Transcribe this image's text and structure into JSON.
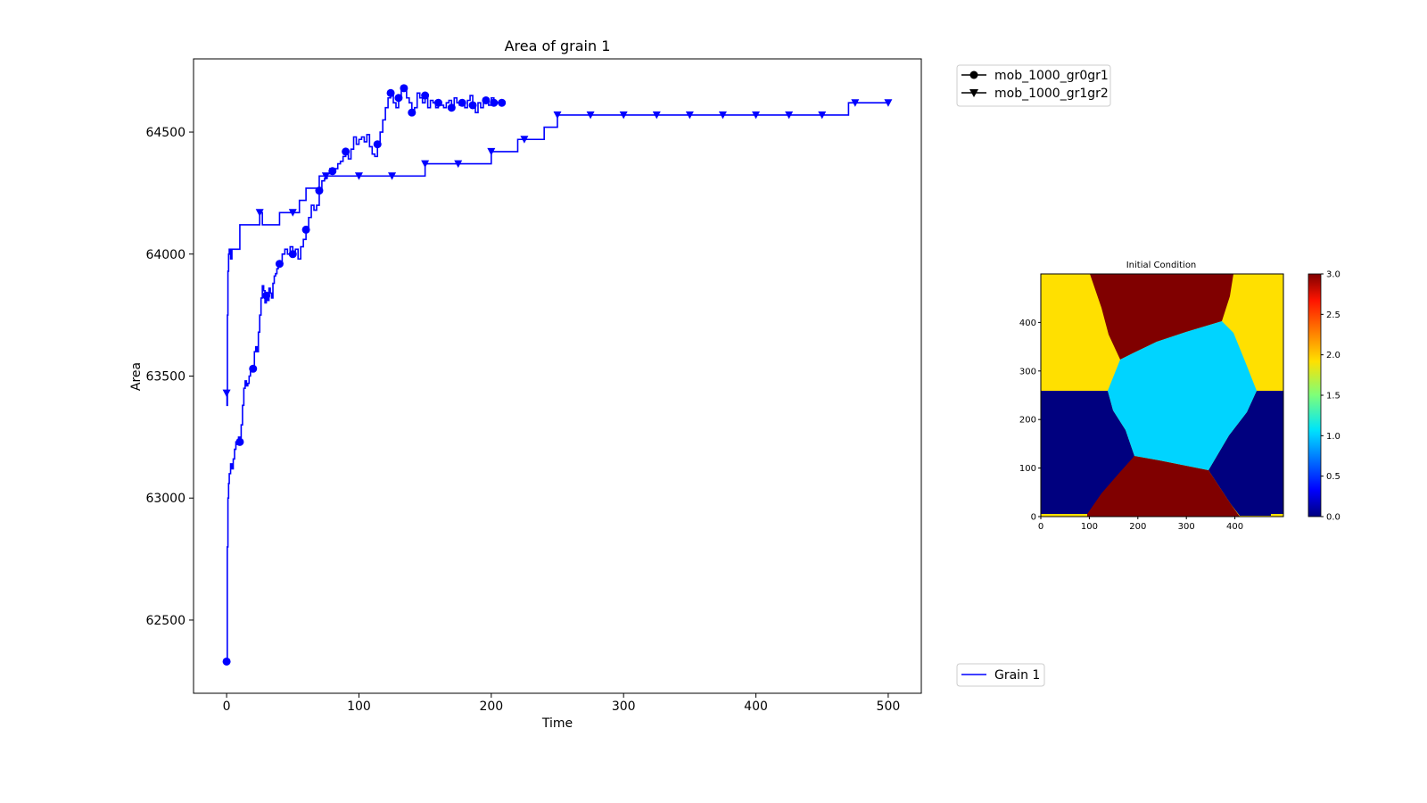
{
  "colors": {
    "series": "#0000ff",
    "legend_marker": "#000000",
    "map_yellow": "#ffe000",
    "map_darkred": "#800000",
    "map_cyan": "#00d4ff",
    "map_navy": "#00007f"
  },
  "chart_data": [
    {
      "type": "line",
      "title": "Area of grain 1",
      "xlabel": "Time",
      "ylabel": "Area",
      "xlim": [
        -25,
        525
      ],
      "ylim": [
        62200,
        64800
      ],
      "xticks": [
        "0",
        "100",
        "200",
        "300",
        "400",
        "500"
      ],
      "yticks": [
        "62500",
        "63000",
        "63500",
        "64000",
        "64500"
      ],
      "grid": false,
      "legend_top": {
        "placement": "outside-top-right",
        "entries": [
          "mob_1000_gr0gr1",
          "mob_1000_gr1gr2"
        ]
      },
      "legend_bottom": {
        "placement": "outside-bottom-right",
        "entries": [
          "Grain 1"
        ]
      },
      "series": [
        {
          "name": "mob_1000_gr0gr1",
          "marker": "circle",
          "x": [
            0,
            0.5,
            1,
            1.5,
            2,
            3,
            4,
            5,
            6,
            7,
            8,
            9,
            10,
            11,
            12,
            13,
            14,
            15,
            16,
            17,
            18,
            19,
            20,
            21,
            22,
            23,
            24,
            25,
            26,
            27,
            28,
            29,
            30,
            31,
            32,
            33,
            34,
            35,
            36,
            37,
            38,
            39,
            40,
            42,
            44,
            46,
            48,
            50,
            52,
            54,
            56,
            58,
            60,
            62,
            64,
            66,
            68,
            70,
            72,
            74,
            76,
            78,
            80,
            82,
            84,
            86,
            88,
            90,
            92,
            94,
            96,
            98,
            100,
            102,
            104,
            106,
            108,
            110,
            112,
            114,
            116,
            118,
            120,
            122,
            124,
            126,
            128,
            130,
            132,
            134,
            136,
            138,
            140,
            142,
            144,
            146,
            148,
            150,
            152,
            154,
            156,
            158,
            160,
            162,
            164,
            166,
            168,
            170,
            172,
            174,
            176,
            178,
            180,
            182,
            184,
            186,
            188,
            190,
            192,
            194,
            196,
            198,
            200,
            202,
            204,
            206,
            208
          ],
          "y": [
            62330,
            62800,
            63000,
            63060,
            63100,
            63140,
            63120,
            63160,
            63200,
            63230,
            63220,
            63250,
            63230,
            63300,
            63380,
            63450,
            63480,
            63460,
            63470,
            63500,
            63520,
            63530,
            63530,
            63600,
            63620,
            63600,
            63680,
            63750,
            63820,
            63870,
            63850,
            63800,
            63830,
            63810,
            63860,
            63840,
            63820,
            63880,
            63910,
            63920,
            63940,
            63960,
            63960,
            64000,
            64020,
            64000,
            64030,
            64000,
            64020,
            63980,
            64030,
            64060,
            64100,
            64150,
            64200,
            64180,
            64200,
            64260,
            64300,
            64310,
            64330,
            64350,
            64340,
            64350,
            64370,
            64380,
            64400,
            64420,
            64390,
            64430,
            64480,
            64450,
            64470,
            64480,
            64460,
            64490,
            64440,
            64410,
            64400,
            64450,
            64500,
            64550,
            64600,
            64640,
            64660,
            64620,
            64600,
            64640,
            64670,
            64680,
            64640,
            64620,
            64580,
            64600,
            64660,
            64640,
            64620,
            64650,
            64600,
            64630,
            64620,
            64600,
            64620,
            64610,
            64600,
            64620,
            64630,
            64600,
            64640,
            64620,
            64610,
            64620,
            64600,
            64630,
            64650,
            64610,
            64580,
            64620,
            64600,
            64620,
            64630,
            64610,
            64640,
            64620,
            64620,
            64620,
            64620
          ],
          "markers_at": [
            0,
            10,
            20,
            30,
            40,
            50,
            60,
            70,
            80,
            90,
            114,
            124,
            130,
            134,
            140,
            150,
            160,
            170,
            178,
            186,
            196,
            202,
            208
          ]
        },
        {
          "name": "mob_1000_gr1gr2",
          "marker": "triangle_down",
          "x": [
            0,
            0.3,
            0.6,
            1,
            1.5,
            2,
            3,
            4,
            5,
            6,
            8,
            10,
            12,
            15,
            18,
            22,
            25,
            27,
            30,
            35,
            40,
            45,
            50,
            55,
            60,
            70,
            80,
            95,
            110,
            125,
            140,
            150,
            165,
            175,
            190,
            200,
            210,
            220,
            230,
            240,
            250,
            260,
            275,
            300,
            350,
            400,
            450,
            470,
            475,
            490,
            500
          ],
          "y": [
            63430,
            63380,
            63750,
            63930,
            64000,
            64020,
            63980,
            64020,
            64020,
            64020,
            64020,
            64120,
            64120,
            64120,
            64120,
            64120,
            64170,
            64120,
            64120,
            64120,
            64170,
            64170,
            64170,
            64220,
            64270,
            64320,
            64320,
            64320,
            64320,
            64320,
            64320,
            64370,
            64370,
            64370,
            64370,
            64420,
            64420,
            64470,
            64470,
            64520,
            64570,
            64570,
            64570,
            64570,
            64570,
            64570,
            64570,
            64620,
            64620,
            64620,
            64620
          ],
          "markers_at": [
            0,
            25,
            50,
            75,
            100,
            125,
            150,
            175,
            200,
            225,
            250,
            275,
            300,
            325,
            350,
            375,
            400,
            425,
            450,
            475,
            500
          ]
        }
      ]
    },
    {
      "type": "heatmap",
      "title": "Initial Condition",
      "xlim": [
        0,
        500
      ],
      "ylim": [
        0,
        500
      ],
      "xticks": [
        "0",
        "100",
        "200",
        "300",
        "400"
      ],
      "yticks": [
        "0",
        "100",
        "200",
        "300",
        "400"
      ],
      "colorbar": {
        "min": 0.0,
        "max": 3.0,
        "ticks": [
          "0.0",
          "0.5",
          "1.0",
          "1.5",
          "2.0",
          "2.5",
          "3.0"
        ]
      },
      "regions": [
        {
          "value": 2.0,
          "color": "#ffe000"
        },
        {
          "value": 3.0,
          "color": "#800000"
        },
        {
          "value": 1.0,
          "color": "#00d4ff"
        },
        {
          "value": 0.0,
          "color": "#00007f"
        }
      ]
    }
  ]
}
